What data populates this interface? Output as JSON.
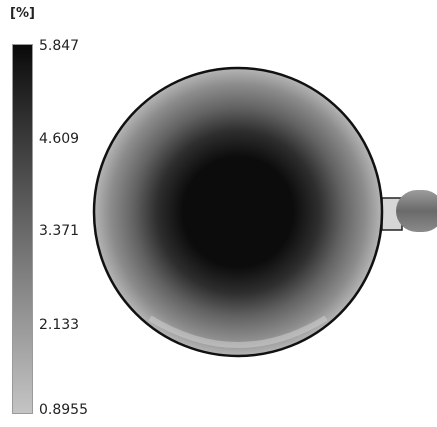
{
  "legend": {
    "unit": "[%]",
    "ticks": [
      "5.847",
      "4.609",
      "3.371",
      "2.133",
      "0.8955"
    ],
    "max_value": 5.847,
    "min_value": 0.8955,
    "color_max": "#0a0a0a",
    "color_min": "#c4c4c4"
  },
  "contour": {
    "center_color": "#0c0c0c",
    "ring_color": "#626262",
    "edge_color": "#b8b8b8",
    "outline_color": "#111111"
  }
}
